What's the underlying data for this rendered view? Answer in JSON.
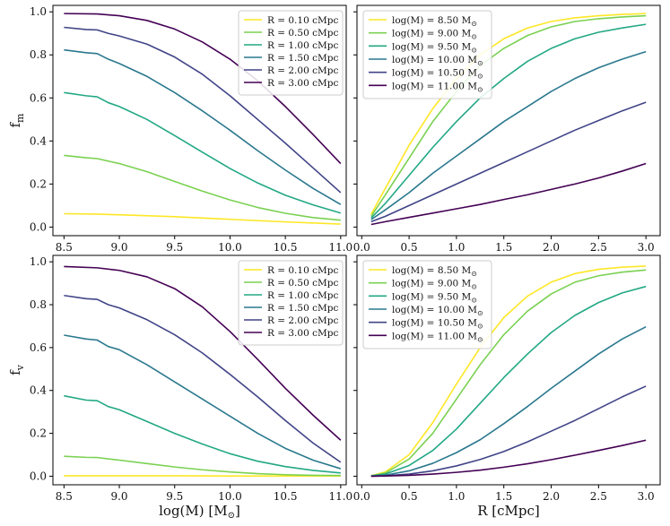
{
  "chart_data": [
    {
      "type": "line",
      "panel": "top-left",
      "xlabel": "",
      "ylabel": "f_m",
      "ylabel_main": "f",
      "ylabel_sub": "m",
      "xlim": [
        8.4,
        11.05
      ],
      "ylim": [
        -0.04,
        1.03
      ],
      "xticks": [
        8.5,
        9.0,
        9.5,
        10.0,
        10.5,
        11.0
      ],
      "xtick_labels": [
        "8.5",
        "9.0",
        "9.5",
        "10.0",
        "10.5",
        "11.0"
      ],
      "yticks": [
        0.0,
        0.2,
        0.4,
        0.6,
        0.8,
        1.0
      ],
      "ytick_labels": [
        "0.0",
        "0.2",
        "0.4",
        "0.6",
        "0.8",
        "1.0"
      ],
      "legend_position": "top-right",
      "series": [
        {
          "name": "R = 0.10 cMpc",
          "label_text": "R = 0.10 cMpc",
          "color": "#fde725",
          "x": [
            8.5,
            8.8,
            9.0,
            9.5,
            10.0,
            10.5,
            11.0
          ],
          "y": [
            0.062,
            0.06,
            0.057,
            0.048,
            0.036,
            0.024,
            0.014
          ]
        },
        {
          "name": "R = 0.50 cMpc",
          "label_text": "R = 0.50 cMpc",
          "color": "#7ad151",
          "x": [
            8.5,
            8.7,
            8.8,
            9.0,
            9.25,
            9.5,
            9.75,
            10.0,
            10.25,
            10.5,
            10.75,
            11.0
          ],
          "y": [
            0.333,
            0.322,
            0.318,
            0.295,
            0.257,
            0.212,
            0.167,
            0.126,
            0.091,
            0.064,
            0.044,
            0.032
          ]
        },
        {
          "name": "R = 1.00 cMpc",
          "label_text": "R = 1.00 cMpc",
          "color": "#22a884",
          "x": [
            8.5,
            8.7,
            8.8,
            8.9,
            9.0,
            9.25,
            9.5,
            9.75,
            10.0,
            10.25,
            10.5,
            10.75,
            11.0
          ],
          "y": [
            0.625,
            0.61,
            0.605,
            0.578,
            0.56,
            0.5,
            0.425,
            0.348,
            0.272,
            0.205,
            0.148,
            0.103,
            0.065
          ]
        },
        {
          "name": "R = 1.50 cMpc",
          "label_text": "R = 1.50 cMpc",
          "color": "#2a788e",
          "x": [
            8.5,
            8.7,
            8.8,
            8.9,
            9.0,
            9.25,
            9.5,
            9.75,
            10.0,
            10.25,
            10.5,
            10.75,
            11.0
          ],
          "y": [
            0.823,
            0.81,
            0.806,
            0.78,
            0.76,
            0.7,
            0.625,
            0.54,
            0.45,
            0.355,
            0.265,
            0.18,
            0.105
          ]
        },
        {
          "name": "R = 2.00 cMpc",
          "label_text": "R = 2.00 cMpc",
          "color": "#414487",
          "x": [
            8.5,
            8.7,
            8.8,
            8.9,
            9.0,
            9.25,
            9.5,
            9.75,
            10.0,
            10.25,
            10.5,
            10.75,
            11.0
          ],
          "y": [
            0.928,
            0.918,
            0.916,
            0.9,
            0.888,
            0.85,
            0.79,
            0.71,
            0.61,
            0.5,
            0.39,
            0.275,
            0.16
          ]
        },
        {
          "name": "R = 3.00 cMpc",
          "label_text": "R = 3.00 cMpc",
          "color": "#440154",
          "x": [
            8.5,
            8.8,
            9.0,
            9.25,
            9.5,
            9.75,
            10.0,
            10.25,
            10.5,
            10.75,
            11.0
          ],
          "y": [
            0.992,
            0.99,
            0.982,
            0.96,
            0.92,
            0.86,
            0.78,
            0.68,
            0.56,
            0.43,
            0.295
          ]
        }
      ]
    },
    {
      "type": "line",
      "panel": "top-right",
      "xlabel": "",
      "ylabel": "",
      "xlim": [
        -0.05,
        3.15
      ],
      "ylim": [
        -0.04,
        1.03
      ],
      "xticks": [
        0.0,
        0.5,
        1.0,
        1.5,
        2.0,
        2.5,
        3.0
      ],
      "xtick_labels": [
        "0.0",
        "0.5",
        "1.0",
        "1.5",
        "2.0",
        "2.5",
        "3.0"
      ],
      "yticks": [
        0.0,
        0.2,
        0.4,
        0.6,
        0.8,
        1.0
      ],
      "ytick_labels": [],
      "legend_position": "top-left",
      "series": [
        {
          "name": "log(M) = 8.50 M_sun",
          "label_text": "log(M) = 8.50 M",
          "color": "#fde725",
          "x": [
            0.1,
            0.25,
            0.5,
            0.75,
            1.0,
            1.25,
            1.5,
            1.75,
            2.0,
            2.25,
            2.5,
            2.75,
            3.0
          ],
          "y": [
            0.06,
            0.18,
            0.38,
            0.55,
            0.69,
            0.8,
            0.875,
            0.925,
            0.955,
            0.972,
            0.982,
            0.988,
            0.992
          ]
        },
        {
          "name": "log(M) = 9.00 M_sun",
          "label_text": "log(M) = 9.00 M",
          "color": "#7ad151",
          "x": [
            0.1,
            0.25,
            0.5,
            0.75,
            1.0,
            1.25,
            1.5,
            1.75,
            2.0,
            2.25,
            2.5,
            2.75,
            3.0
          ],
          "y": [
            0.05,
            0.15,
            0.32,
            0.49,
            0.63,
            0.75,
            0.83,
            0.89,
            0.93,
            0.955,
            0.968,
            0.976,
            0.982
          ]
        },
        {
          "name": "log(M) = 9.50 M_sun",
          "label_text": "log(M) = 9.50 M",
          "color": "#22a884",
          "x": [
            0.1,
            0.25,
            0.5,
            0.75,
            1.0,
            1.25,
            1.5,
            1.75,
            2.0,
            2.25,
            2.5,
            2.75,
            3.0
          ],
          "y": [
            0.042,
            0.11,
            0.24,
            0.37,
            0.49,
            0.6,
            0.69,
            0.77,
            0.83,
            0.875,
            0.905,
            0.925,
            0.942
          ]
        },
        {
          "name": "log(M) = 10.00 M_sun",
          "label_text": "log(M) = 10.00 M",
          "color": "#2a788e",
          "x": [
            0.1,
            0.25,
            0.5,
            0.75,
            1.0,
            1.25,
            1.5,
            1.75,
            2.0,
            2.25,
            2.5,
            2.75,
            3.0
          ],
          "y": [
            0.035,
            0.08,
            0.16,
            0.25,
            0.33,
            0.41,
            0.49,
            0.56,
            0.63,
            0.69,
            0.74,
            0.78,
            0.815
          ]
        },
        {
          "name": "log(M) = 10.50 M_sun",
          "label_text": "log(M) = 10.50 M",
          "color": "#414487",
          "x": [
            0.1,
            0.25,
            0.5,
            0.75,
            1.0,
            1.25,
            1.5,
            1.75,
            2.0,
            2.25,
            2.5,
            2.75,
            3.0
          ],
          "y": [
            0.025,
            0.05,
            0.1,
            0.15,
            0.2,
            0.25,
            0.3,
            0.35,
            0.4,
            0.45,
            0.495,
            0.54,
            0.58
          ]
        },
        {
          "name": "log(M) = 11.00 M_sun",
          "label_text": "log(M) = 11.00 M",
          "color": "#440154",
          "x": [
            0.1,
            0.25,
            0.5,
            0.75,
            1.0,
            1.25,
            1.5,
            1.75,
            2.0,
            2.25,
            2.5,
            2.75,
            3.0
          ],
          "y": [
            0.012,
            0.025,
            0.045,
            0.065,
            0.085,
            0.105,
            0.128,
            0.15,
            0.175,
            0.2,
            0.228,
            0.26,
            0.295
          ]
        }
      ]
    },
    {
      "type": "line",
      "panel": "bottom-left",
      "xlabel": "log(M) [M_sun]",
      "xlabel_pre": "log(M) [M",
      "xlabel_post": "]",
      "ylabel": "f_v",
      "ylabel_main": "f",
      "ylabel_sub": "v",
      "xlim": [
        8.4,
        11.05
      ],
      "ylim": [
        -0.04,
        1.03
      ],
      "xticks": [
        8.5,
        9.0,
        9.5,
        10.0,
        10.5,
        11.0
      ],
      "xtick_labels": [
        "8.5",
        "9.0",
        "9.5",
        "10.0",
        "10.5",
        "11.0"
      ],
      "yticks": [
        0.0,
        0.2,
        0.4,
        0.6,
        0.8,
        1.0
      ],
      "ytick_labels": [
        "0.0",
        "0.2",
        "0.4",
        "0.6",
        "0.8",
        "1.0"
      ],
      "legend_position": "top-right",
      "series": [
        {
          "name": "R = 0.10 cMpc",
          "label_text": "R = 0.10 cMpc",
          "color": "#fde725",
          "x": [
            8.5,
            9.0,
            9.5,
            10.0,
            10.5,
            11.0
          ],
          "y": [
            0.002,
            0.002,
            0.002,
            0.001,
            0.001,
            0.001
          ]
        },
        {
          "name": "R = 0.50 cMpc",
          "label_text": "R = 0.50 cMpc",
          "color": "#7ad151",
          "x": [
            8.5,
            8.7,
            8.8,
            9.0,
            9.25,
            9.5,
            9.75,
            10.0,
            10.25,
            10.5,
            10.75,
            11.0
          ],
          "y": [
            0.093,
            0.088,
            0.087,
            0.075,
            0.059,
            0.043,
            0.03,
            0.02,
            0.012,
            0.007,
            0.004,
            0.003
          ]
        },
        {
          "name": "R = 1.00 cMpc",
          "label_text": "R = 1.00 cMpc",
          "color": "#22a884",
          "x": [
            8.5,
            8.7,
            8.8,
            8.9,
            9.0,
            9.25,
            9.5,
            9.75,
            10.0,
            10.25,
            10.5,
            10.75,
            11.0
          ],
          "y": [
            0.375,
            0.355,
            0.352,
            0.325,
            0.31,
            0.255,
            0.2,
            0.15,
            0.105,
            0.07,
            0.045,
            0.027,
            0.015
          ]
        },
        {
          "name": "R = 1.50 cMpc",
          "label_text": "R = 1.50 cMpc",
          "color": "#2a788e",
          "x": [
            8.5,
            8.7,
            8.8,
            8.9,
            9.0,
            9.25,
            9.5,
            9.75,
            10.0,
            10.25,
            10.5,
            10.75,
            11.0
          ],
          "y": [
            0.658,
            0.64,
            0.635,
            0.605,
            0.59,
            0.52,
            0.44,
            0.36,
            0.28,
            0.2,
            0.13,
            0.075,
            0.035
          ]
        },
        {
          "name": "R = 2.00 cMpc",
          "label_text": "R = 2.00 cMpc",
          "color": "#414487",
          "x": [
            8.5,
            8.7,
            8.8,
            8.9,
            9.0,
            9.25,
            9.5,
            9.75,
            10.0,
            10.25,
            10.5,
            10.75,
            11.0
          ],
          "y": [
            0.843,
            0.828,
            0.825,
            0.8,
            0.785,
            0.73,
            0.66,
            0.575,
            0.475,
            0.37,
            0.26,
            0.155,
            0.065
          ]
        },
        {
          "name": "R = 3.00 cMpc",
          "label_text": "R = 3.00 cMpc",
          "color": "#440154",
          "x": [
            8.5,
            8.8,
            9.0,
            9.25,
            9.5,
            9.75,
            10.0,
            10.25,
            10.5,
            10.75,
            11.0
          ],
          "y": [
            0.978,
            0.972,
            0.96,
            0.93,
            0.875,
            0.79,
            0.675,
            0.545,
            0.41,
            0.285,
            0.168
          ]
        }
      ]
    },
    {
      "type": "line",
      "panel": "bottom-right",
      "xlabel": "R [cMpc]",
      "ylabel": "",
      "xlim": [
        -0.05,
        3.15
      ],
      "ylim": [
        -0.04,
        1.03
      ],
      "xticks": [
        0.0,
        0.5,
        1.0,
        1.5,
        2.0,
        2.5,
        3.0
      ],
      "xtick_labels": [
        "0.0",
        "0.5",
        "1.0",
        "1.5",
        "2.0",
        "2.5",
        "3.0"
      ],
      "yticks": [
        0.0,
        0.2,
        0.4,
        0.6,
        0.8,
        1.0
      ],
      "ytick_labels": [],
      "legend_position": "top-left",
      "series": [
        {
          "name": "log(M) = 8.50 M_sun",
          "label_text": "log(M) = 8.50 M",
          "color": "#fde725",
          "x": [
            0.1,
            0.25,
            0.5,
            0.75,
            1.0,
            1.25,
            1.5,
            1.75,
            2.0,
            2.25,
            2.5,
            2.75,
            3.0
          ],
          "y": [
            0.002,
            0.02,
            0.1,
            0.25,
            0.43,
            0.6,
            0.74,
            0.84,
            0.905,
            0.945,
            0.965,
            0.975,
            0.98
          ]
        },
        {
          "name": "log(M) = 9.00 M_sun",
          "label_text": "log(M) = 9.00 M",
          "color": "#7ad151",
          "x": [
            0.1,
            0.25,
            0.5,
            0.75,
            1.0,
            1.25,
            1.5,
            1.75,
            2.0,
            2.25,
            2.5,
            2.75,
            3.0
          ],
          "y": [
            0.002,
            0.015,
            0.08,
            0.2,
            0.36,
            0.52,
            0.66,
            0.77,
            0.85,
            0.905,
            0.935,
            0.952,
            0.962
          ]
        },
        {
          "name": "log(M) = 9.50 M_sun",
          "label_text": "log(M) = 9.50 M",
          "color": "#22a884",
          "x": [
            0.1,
            0.25,
            0.5,
            0.75,
            1.0,
            1.25,
            1.5,
            1.75,
            2.0,
            2.25,
            2.5,
            2.75,
            3.0
          ],
          "y": [
            0.001,
            0.01,
            0.05,
            0.12,
            0.22,
            0.34,
            0.46,
            0.57,
            0.67,
            0.75,
            0.81,
            0.855,
            0.885
          ]
        },
        {
          "name": "log(M) = 10.00 M_sun",
          "label_text": "log(M) = 10.00 M",
          "color": "#2a788e",
          "x": [
            0.1,
            0.25,
            0.5,
            0.75,
            1.0,
            1.25,
            1.5,
            1.75,
            2.0,
            2.25,
            2.5,
            2.75,
            3.0
          ],
          "y": [
            0.001,
            0.005,
            0.025,
            0.06,
            0.11,
            0.17,
            0.245,
            0.325,
            0.41,
            0.49,
            0.57,
            0.64,
            0.697
          ]
        },
        {
          "name": "log(M) = 10.50 M_sun",
          "label_text": "log(M) = 10.50 M",
          "color": "#414487",
          "x": [
            0.1,
            0.25,
            0.5,
            0.75,
            1.0,
            1.25,
            1.5,
            1.75,
            2.0,
            2.25,
            2.5,
            2.75,
            3.0
          ],
          "y": [
            0.0,
            0.002,
            0.01,
            0.025,
            0.048,
            0.078,
            0.115,
            0.16,
            0.21,
            0.26,
            0.315,
            0.37,
            0.42
          ]
        },
        {
          "name": "log(M) = 11.00 M_sun",
          "label_text": "log(M) = 11.00 M",
          "color": "#440154",
          "x": [
            0.1,
            0.25,
            0.5,
            0.75,
            1.0,
            1.25,
            1.5,
            1.75,
            2.0,
            2.25,
            2.5,
            2.75,
            3.0
          ],
          "y": [
            0.0,
            0.001,
            0.004,
            0.01,
            0.018,
            0.028,
            0.042,
            0.058,
            0.077,
            0.098,
            0.12,
            0.143,
            0.168
          ]
        }
      ]
    }
  ]
}
